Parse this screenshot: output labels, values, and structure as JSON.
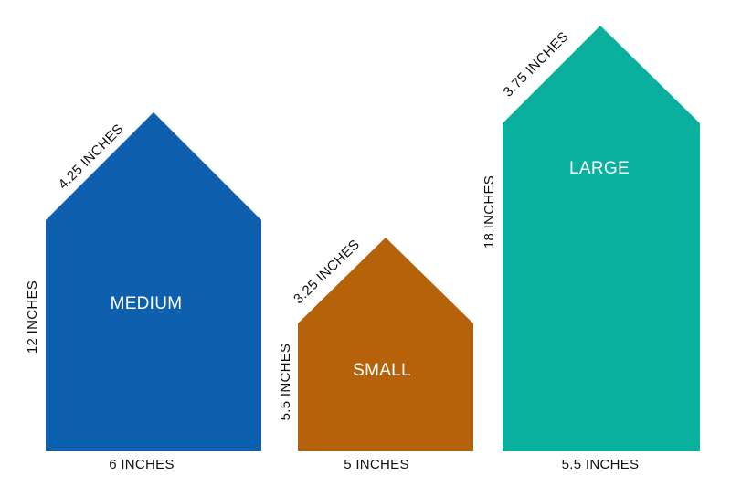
{
  "houses": [
    {
      "label": "MEDIUM",
      "roof": "4.25 INCHES",
      "height": "12 INCHES",
      "width": "6 INCHES"
    },
    {
      "label": "SMALL",
      "roof": "3.25 INCHES",
      "height": "5.5 INCHES",
      "width": "5 INCHES"
    },
    {
      "label": "LARGE",
      "roof": "3.75 INCHES",
      "height": "18 INCHES",
      "width": "5.5 INCHES"
    }
  ]
}
